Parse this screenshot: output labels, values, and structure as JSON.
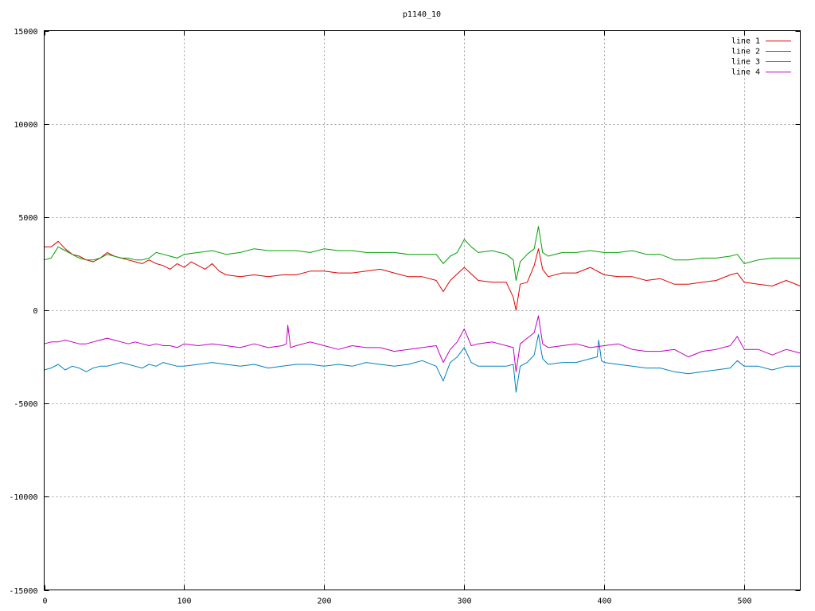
{
  "chart_data": {
    "type": "line",
    "title": "p1140_10",
    "xlabel": "",
    "ylabel": "",
    "xlim": [
      0,
      540
    ],
    "ylim": [
      -15000,
      15000
    ],
    "x_ticks": [
      0,
      100,
      200,
      300,
      400,
      500
    ],
    "y_ticks": [
      -15000,
      -10000,
      -5000,
      0,
      5000,
      10000,
      15000
    ],
    "grid": true,
    "legend_position": "top-right",
    "series": [
      {
        "name": "line 1",
        "color": "#e00000",
        "x": [
          0,
          5,
          10,
          15,
          20,
          25,
          30,
          35,
          40,
          45,
          50,
          55,
          60,
          65,
          70,
          75,
          80,
          85,
          90,
          95,
          100,
          105,
          110,
          115,
          120,
          125,
          130,
          140,
          150,
          160,
          170,
          180,
          190,
          200,
          210,
          220,
          230,
          240,
          250,
          260,
          270,
          280,
          285,
          290,
          300,
          310,
          320,
          330,
          335,
          337,
          340,
          345,
          350,
          353,
          356,
          360,
          370,
          380,
          390,
          400,
          410,
          420,
          430,
          440,
          450,
          460,
          470,
          480,
          490,
          495,
          500,
          510,
          520,
          530,
          540
        ],
        "values": [
          3400,
          3400,
          3700,
          3300,
          3000,
          2900,
          2700,
          2600,
          2800,
          3100,
          2900,
          2800,
          2700,
          2600,
          2500,
          2700,
          2500,
          2400,
          2200,
          2500,
          2300,
          2600,
          2400,
          2200,
          2500,
          2100,
          1900,
          1800,
          1900,
          1800,
          1900,
          1900,
          2100,
          2100,
          2000,
          2000,
          2100,
          2200,
          2000,
          1800,
          1800,
          1600,
          1000,
          1600,
          2300,
          1600,
          1500,
          1500,
          700,
          0,
          1400,
          1500,
          2400,
          3300,
          2200,
          1800,
          2000,
          2000,
          2300,
          1900,
          1800,
          1800,
          1600,
          1700,
          1400,
          1400,
          1500,
          1600,
          1900,
          2000,
          1500,
          1400,
          1300,
          1600,
          1300
        ]
      },
      {
        "name": "line 2",
        "color": "#00a000",
        "x": [
          0,
          5,
          10,
          15,
          20,
          25,
          30,
          35,
          40,
          45,
          50,
          55,
          60,
          65,
          70,
          75,
          80,
          85,
          90,
          95,
          100,
          110,
          120,
          130,
          140,
          150,
          160,
          170,
          180,
          190,
          200,
          210,
          220,
          230,
          240,
          250,
          260,
          270,
          280,
          285,
          290,
          295,
          300,
          305,
          310,
          320,
          330,
          335,
          337,
          340,
          345,
          350,
          353,
          356,
          360,
          370,
          380,
          390,
          400,
          410,
          420,
          430,
          440,
          450,
          460,
          470,
          480,
          490,
          495,
          500,
          510,
          520,
          530,
          540
        ],
        "values": [
          2700,
          2800,
          3400,
          3200,
          3000,
          2800,
          2700,
          2700,
          2800,
          3000,
          2900,
          2800,
          2800,
          2700,
          2700,
          2800,
          3100,
          3000,
          2900,
          2800,
          3000,
          3100,
          3200,
          3000,
          3100,
          3300,
          3200,
          3200,
          3200,
          3100,
          3300,
          3200,
          3200,
          3100,
          3100,
          3100,
          3000,
          3000,
          3000,
          2500,
          2900,
          3100,
          3800,
          3400,
          3100,
          3200,
          3000,
          2700,
          1600,
          2600,
          3000,
          3300,
          4500,
          3100,
          2900,
          3100,
          3100,
          3200,
          3100,
          3100,
          3200,
          3000,
          3000,
          2700,
          2700,
          2800,
          2800,
          2900,
          3000,
          2500,
          2700,
          2800,
          2800,
          2800
        ]
      },
      {
        "name": "line 3",
        "color": "#0080c0",
        "x": [
          0,
          5,
          10,
          15,
          20,
          25,
          30,
          35,
          40,
          45,
          50,
          55,
          60,
          65,
          70,
          75,
          80,
          85,
          90,
          95,
          100,
          110,
          120,
          130,
          140,
          150,
          160,
          170,
          180,
          190,
          200,
          210,
          220,
          230,
          240,
          250,
          260,
          270,
          280,
          285,
          290,
          295,
          300,
          305,
          310,
          320,
          330,
          335,
          337,
          340,
          345,
          350,
          353,
          356,
          360,
          370,
          380,
          390,
          395,
          396,
          398,
          400,
          410,
          420,
          430,
          440,
          450,
          460,
          470,
          480,
          490,
          495,
          500,
          510,
          520,
          530,
          540
        ],
        "values": [
          -3200,
          -3100,
          -2900,
          -3200,
          -3000,
          -3100,
          -3300,
          -3100,
          -3000,
          -3000,
          -2900,
          -2800,
          -2900,
          -3000,
          -3100,
          -2900,
          -3000,
          -2800,
          -2900,
          -3000,
          -3000,
          -2900,
          -2800,
          -2900,
          -3000,
          -2900,
          -3100,
          -3000,
          -2900,
          -2900,
          -3000,
          -2900,
          -3000,
          -2800,
          -2900,
          -3000,
          -2900,
          -2700,
          -3000,
          -3800,
          -2800,
          -2500,
          -2000,
          -2800,
          -3000,
          -3000,
          -3000,
          -2900,
          -4400,
          -3000,
          -2800,
          -2400,
          -1300,
          -2600,
          -2900,
          -2800,
          -2800,
          -2600,
          -2500,
          -1600,
          -2700,
          -2800,
          -2900,
          -3000,
          -3100,
          -3100,
          -3300,
          -3400,
          -3300,
          -3200,
          -3100,
          -2700,
          -3000,
          -3000,
          -3200,
          -3000,
          -3000
        ]
      },
      {
        "name": "line 4",
        "color": "#c000c0",
        "x": [
          0,
          5,
          10,
          15,
          20,
          25,
          30,
          35,
          40,
          45,
          50,
          55,
          60,
          65,
          70,
          75,
          80,
          85,
          90,
          95,
          100,
          110,
          120,
          130,
          140,
          150,
          160,
          170,
          173,
          174,
          176,
          180,
          190,
          200,
          210,
          220,
          230,
          240,
          250,
          260,
          270,
          280,
          285,
          290,
          295,
          300,
          305,
          310,
          320,
          330,
          335,
          337,
          340,
          345,
          350,
          353,
          356,
          360,
          370,
          380,
          390,
          400,
          410,
          420,
          430,
          440,
          450,
          460,
          470,
          480,
          490,
          495,
          500,
          510,
          520,
          530,
          540
        ],
        "values": [
          -1800,
          -1700,
          -1700,
          -1600,
          -1700,
          -1800,
          -1800,
          -1700,
          -1600,
          -1500,
          -1600,
          -1700,
          -1800,
          -1700,
          -1800,
          -1900,
          -1800,
          -1900,
          -1900,
          -2000,
          -1800,
          -1900,
          -1800,
          -1900,
          -2000,
          -1800,
          -2000,
          -1900,
          -1800,
          -800,
          -2000,
          -1900,
          -1700,
          -1900,
          -2100,
          -1900,
          -2000,
          -2000,
          -2200,
          -2100,
          -2000,
          -1900,
          -2800,
          -2100,
          -1700,
          -1000,
          -1900,
          -1800,
          -1700,
          -1900,
          -2000,
          -3300,
          -1800,
          -1500,
          -1200,
          -300,
          -1800,
          -2000,
          -1900,
          -1800,
          -2000,
          -1900,
          -1800,
          -2100,
          -2200,
          -2200,
          -2100,
          -2500,
          -2200,
          -2100,
          -1900,
          -1400,
          -2100,
          -2100,
          -2400,
          -2100,
          -2300
        ]
      }
    ]
  }
}
